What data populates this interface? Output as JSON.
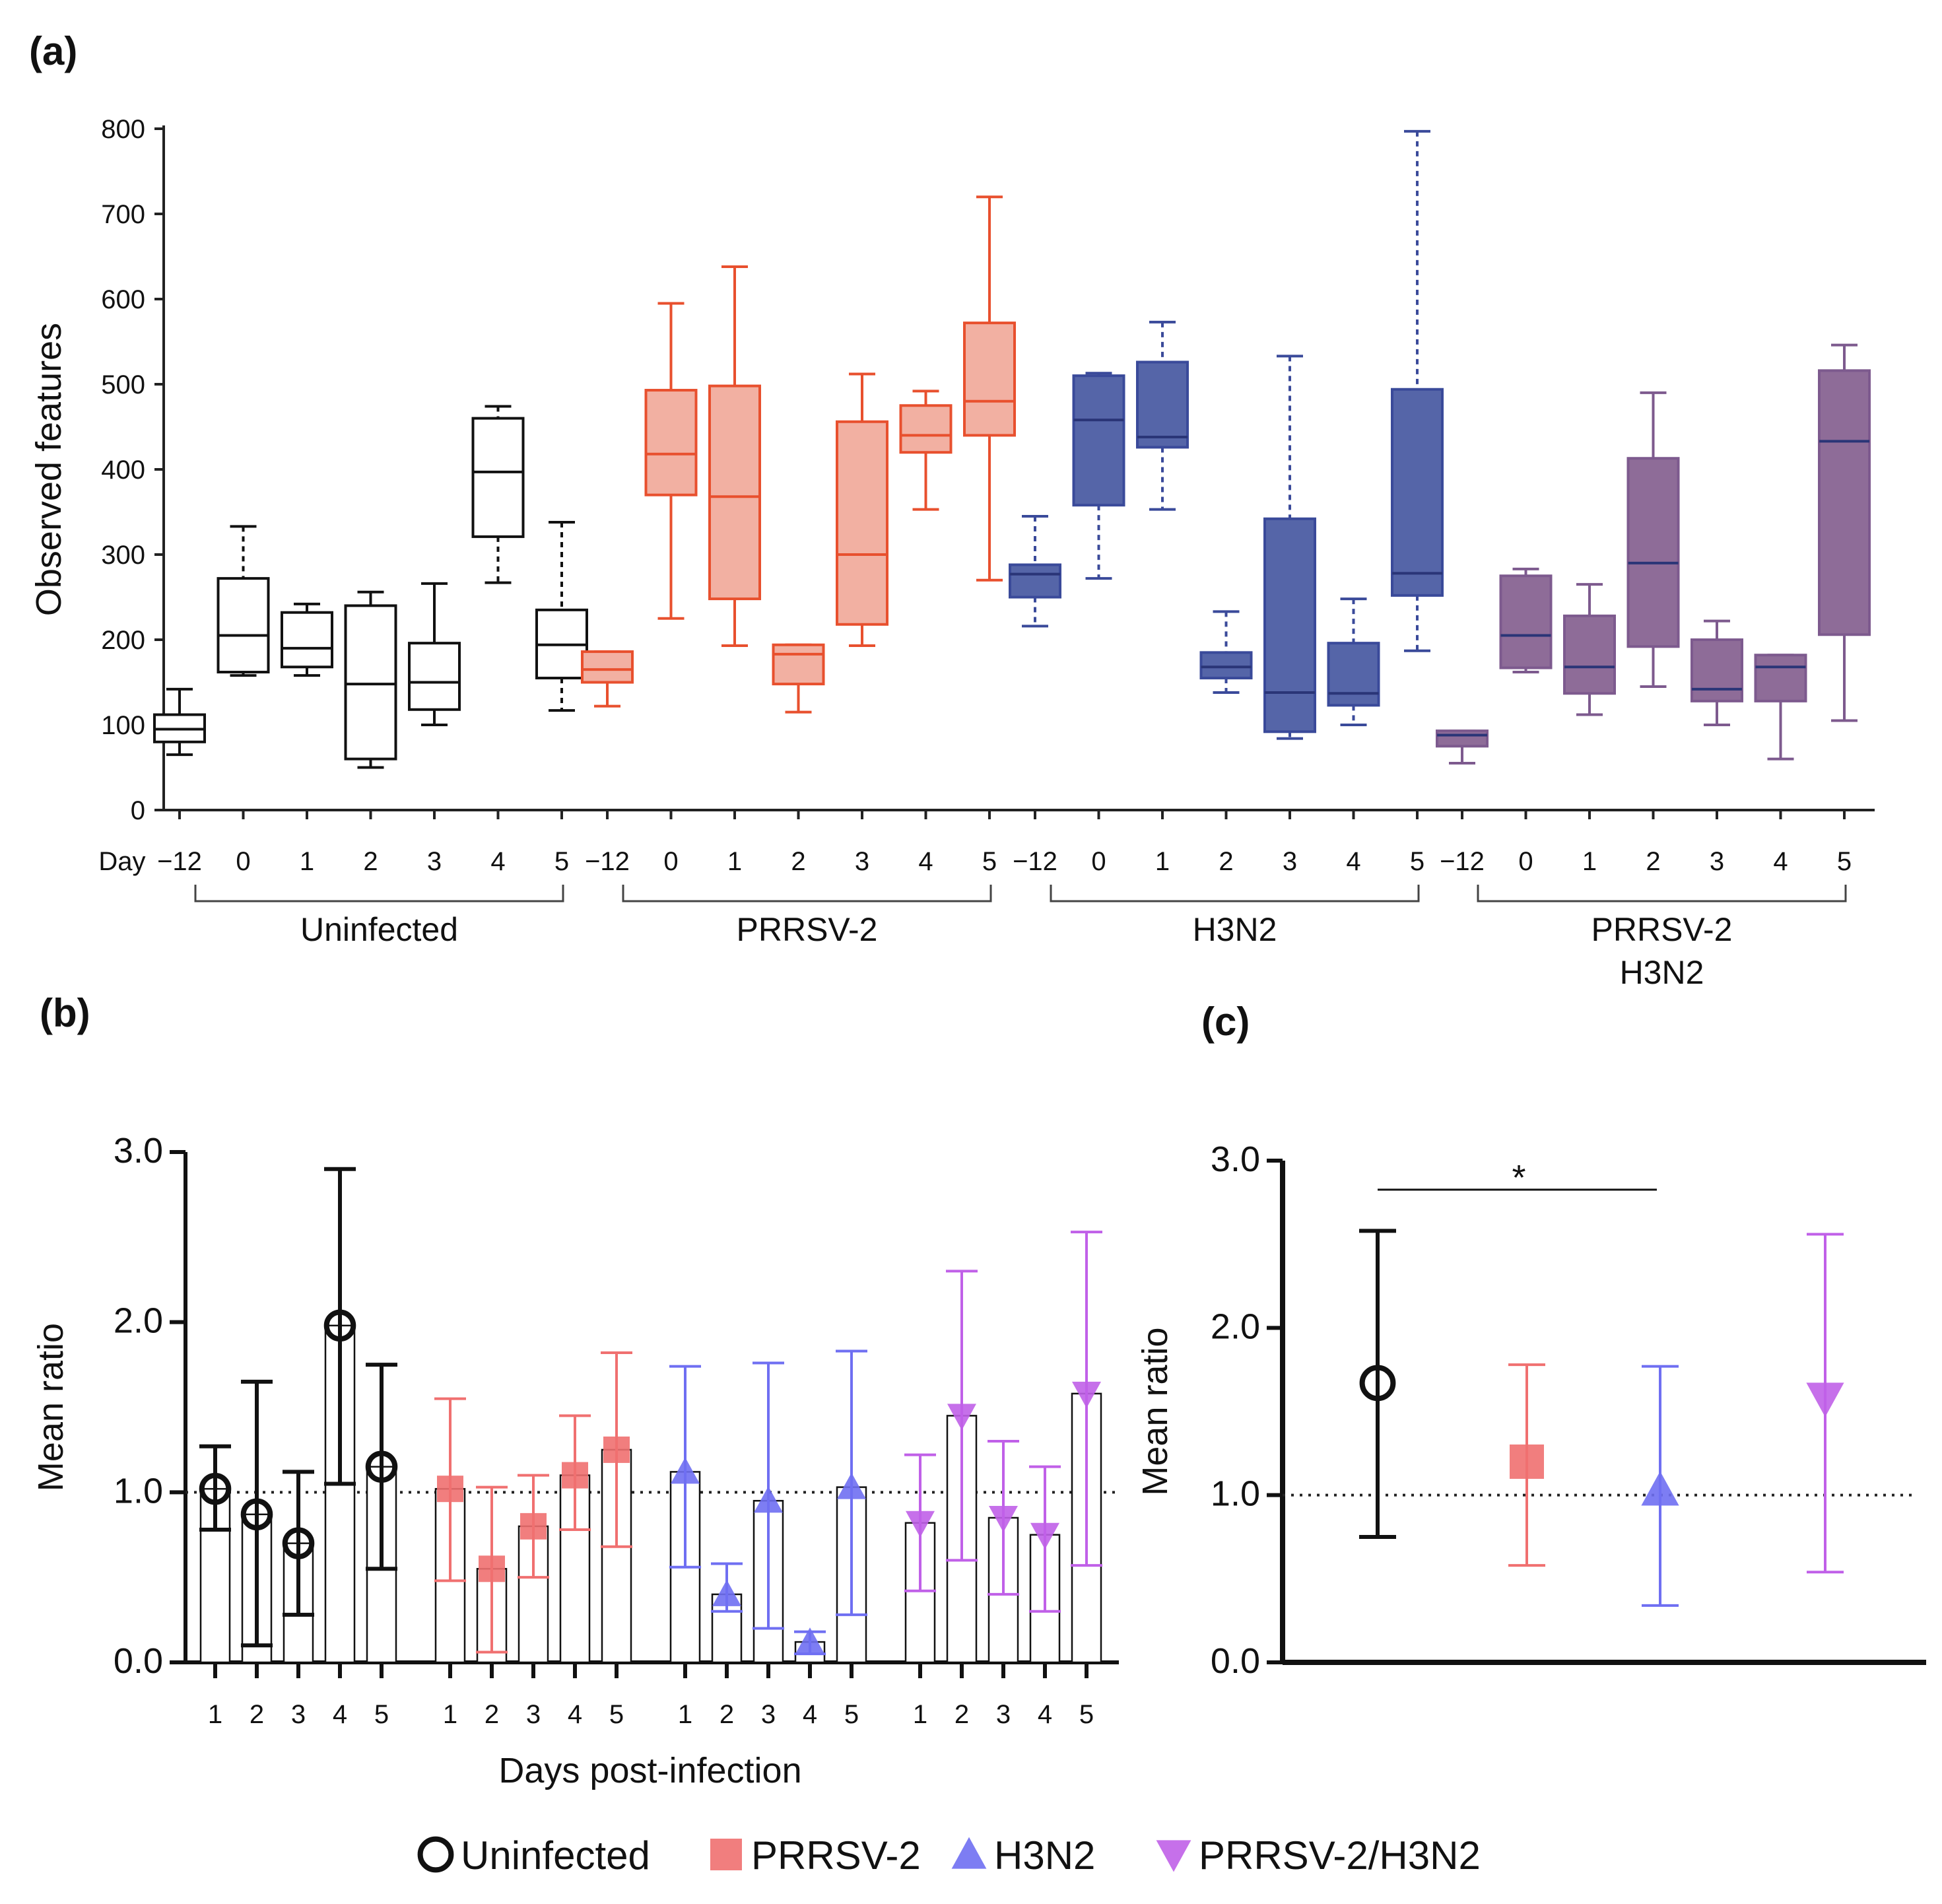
{
  "panels": {
    "a": "(a)",
    "b": "(b)",
    "c": "(c)"
  },
  "colors": {
    "uninfected": "#111111",
    "prrsv_line": "#E8502E",
    "prrsv_fill": "#F2B0A2",
    "h3n2_line": "#3A4A9A",
    "h3n2_fill": "#5565A8",
    "combo_line": "#7D5A8E",
    "combo_fill": "#8E6C98",
    "prrsv_b": "#F07070",
    "h3n2_b": "#6F6FF2",
    "combo_b": "#C060E8"
  },
  "chart_data": [
    {
      "type": "boxplot",
      "id": "a",
      "ylabel": "Observed features",
      "ylim": [
        0,
        800
      ],
      "yticks": [
        "0",
        "100",
        "200",
        "300",
        "400",
        "500",
        "600",
        "700",
        "800"
      ],
      "day_label": "Day",
      "days": [
        "−12",
        "0",
        "1",
        "2",
        "3",
        "4",
        "5"
      ],
      "groups": [
        {
          "name": "Uninfected",
          "name2": "",
          "color": "uninfected",
          "fill": "#ffffff",
          "dashed_days": [
            "0",
            "4",
            "5"
          ],
          "boxes": [
            {
              "day": "−12",
              "min": 65,
              "q1": 80,
              "median": 95,
              "q3": 112,
              "max": 142
            },
            {
              "day": "0",
              "min": 158,
              "q1": 162,
              "median": 205,
              "q3": 272,
              "max": 333
            },
            {
              "day": "1",
              "min": 158,
              "q1": 168,
              "median": 190,
              "q3": 232,
              "max": 242
            },
            {
              "day": "2",
              "min": 50,
              "q1": 60,
              "median": 148,
              "q3": 240,
              "max": 256
            },
            {
              "day": "3",
              "min": 100,
              "q1": 118,
              "median": 150,
              "q3": 196,
              "max": 266
            },
            {
              "day": "4",
              "min": 267,
              "q1": 321,
              "median": 397,
              "q3": 460,
              "max": 474
            },
            {
              "day": "5",
              "min": 117,
              "q1": 155,
              "median": 194,
              "q3": 235,
              "max": 338
            }
          ]
        },
        {
          "name": "PRRSV-2",
          "name2": "",
          "color": "prrsv_line",
          "fill": "prrsv_fill",
          "dashed_days": [],
          "boxes": [
            {
              "day": "−12",
              "min": 122,
              "q1": 150,
              "median": 165,
              "q3": 186,
              "max": 186
            },
            {
              "day": "0",
              "min": 225,
              "q1": 370,
              "median": 418,
              "q3": 493,
              "max": 595
            },
            {
              "day": "1",
              "min": 193,
              "q1": 248,
              "median": 368,
              "q3": 498,
              "max": 638
            },
            {
              "day": "2",
              "min": 115,
              "q1": 148,
              "median": 183,
              "q3": 194,
              "max": 194
            },
            {
              "day": "3",
              "min": 193,
              "q1": 218,
              "median": 300,
              "q3": 456,
              "max": 512
            },
            {
              "day": "4",
              "min": 353,
              "q1": 420,
              "median": 440,
              "q3": 475,
              "max": 492
            },
            {
              "day": "5",
              "min": 270,
              "q1": 440,
              "median": 480,
              "q3": 572,
              "max": 720
            }
          ]
        },
        {
          "name": "H3N2",
          "name2": "",
          "color": "h3n2_line",
          "fill": "h3n2_fill",
          "dashed_days": [
            "−12",
            "0",
            "1",
            "2",
            "3",
            "4",
            "5"
          ],
          "boxes": [
            {
              "day": "−12",
              "min": 216,
              "q1": 250,
              "median": 277,
              "q3": 288,
              "max": 345
            },
            {
              "day": "0",
              "min": 272,
              "q1": 358,
              "median": 458,
              "q3": 510,
              "max": 513
            },
            {
              "day": "1",
              "min": 353,
              "q1": 426,
              "median": 438,
              "q3": 526,
              "max": 573
            },
            {
              "day": "2",
              "min": 138,
              "q1": 155,
              "median": 168,
              "q3": 185,
              "max": 233
            },
            {
              "day": "3",
              "min": 84,
              "q1": 92,
              "median": 138,
              "q3": 342,
              "max": 533
            },
            {
              "day": "4",
              "min": 100,
              "q1": 123,
              "median": 137,
              "q3": 196,
              "max": 248
            },
            {
              "day": "5",
              "min": 187,
              "q1": 252,
              "median": 278,
              "q3": 494,
              "max": 797
            }
          ]
        },
        {
          "name": "PRRSV-2",
          "name2": "H3N2",
          "color": "combo_line",
          "fill": "combo_fill",
          "dashed_days": [],
          "boxes": [
            {
              "day": "−12",
              "min": 55,
              "q1": 75,
              "median": 88,
              "q3": 93,
              "max": 93
            },
            {
              "day": "0",
              "min": 162,
              "q1": 167,
              "median": 205,
              "q3": 275,
              "max": 283
            },
            {
              "day": "1",
              "min": 112,
              "q1": 137,
              "median": 168,
              "q3": 228,
              "max": 265
            },
            {
              "day": "2",
              "min": 145,
              "q1": 192,
              "median": 290,
              "q3": 413,
              "max": 490
            },
            {
              "day": "3",
              "min": 100,
              "q1": 128,
              "median": 142,
              "q3": 200,
              "max": 222
            },
            {
              "day": "4",
              "min": 60,
              "q1": 128,
              "median": 168,
              "q3": 182,
              "max": 182
            },
            {
              "day": "5",
              "min": 105,
              "q1": 206,
              "median": 433,
              "q3": 516,
              "max": 546
            }
          ]
        }
      ]
    },
    {
      "type": "bar_errorbar",
      "id": "b",
      "ylabel": "Mean ratio",
      "xlabel": "Days post-infection",
      "ylim": [
        0,
        3
      ],
      "yticks": [
        "0.0",
        "1.0",
        "2.0",
        "3.0"
      ],
      "reference_line": 1.0,
      "days": [
        "1",
        "2",
        "3",
        "4",
        "5"
      ],
      "series": [
        {
          "name": "Uninfected",
          "marker": "circle",
          "color": "uninfected",
          "values": [
            1.02,
            0.87,
            0.7,
            1.98,
            1.15
          ],
          "lower": [
            0.78,
            0.1,
            0.28,
            1.05,
            0.55
          ],
          "upper": [
            1.27,
            1.65,
            1.12,
            2.9,
            1.75
          ]
        },
        {
          "name": "PRRSV-2",
          "marker": "square",
          "color": "prrsv_b",
          "values": [
            1.02,
            0.55,
            0.8,
            1.1,
            1.25
          ],
          "lower": [
            0.48,
            0.06,
            0.5,
            0.78,
            0.68
          ],
          "upper": [
            1.55,
            1.03,
            1.1,
            1.45,
            1.82
          ]
        },
        {
          "name": "H3N2",
          "marker": "triangle-up",
          "color": "h3n2_b",
          "values": [
            1.12,
            0.4,
            0.95,
            0.12,
            1.03
          ],
          "lower": [
            0.56,
            0.3,
            0.2,
            0.05,
            0.28
          ],
          "upper": [
            1.74,
            0.58,
            1.76,
            0.18,
            1.83
          ]
        },
        {
          "name": "PRRSV-2/H3N2",
          "marker": "triangle-down",
          "color": "combo_b",
          "values": [
            0.82,
            1.45,
            0.85,
            0.75,
            1.58
          ],
          "lower": [
            0.42,
            0.6,
            0.4,
            0.3,
            0.57
          ],
          "upper": [
            1.22,
            2.3,
            1.3,
            1.15,
            2.53
          ]
        }
      ]
    },
    {
      "type": "errorbar",
      "id": "c",
      "ylabel": "Mean ratio",
      "ylim": [
        0,
        3
      ],
      "yticks": [
        "0.0",
        "1.0",
        "2.0",
        "3.0"
      ],
      "reference_line": 1.0,
      "significance": {
        "from": 0,
        "to": 2,
        "label": "*"
      },
      "series": [
        {
          "name": "Uninfected",
          "marker": "circle",
          "color": "uninfected",
          "value": 1.67,
          "lower": 0.75,
          "upper": 2.58
        },
        {
          "name": "PRRSV-2",
          "marker": "square",
          "color": "prrsv_b",
          "value": 1.2,
          "lower": 0.58,
          "upper": 1.78
        },
        {
          "name": "H3N2",
          "marker": "triangle-up",
          "color": "h3n2_b",
          "value": 1.03,
          "lower": 0.34,
          "upper": 1.77
        },
        {
          "name": "PRRSV-2/H3N2",
          "marker": "triangle-down",
          "color": "combo_b",
          "value": 1.58,
          "lower": 0.54,
          "upper": 2.56
        }
      ]
    }
  ],
  "legend": [
    {
      "label": "Uninfected",
      "marker": "circle",
      "color": "uninfected"
    },
    {
      "label": "PRRSV-2",
      "marker": "square",
      "color": "prrsv_b"
    },
    {
      "label": "H3N2",
      "marker": "triangle-up",
      "color": "h3n2_b"
    },
    {
      "label": "PRRSV-2/H3N2",
      "marker": "triangle-down",
      "color": "combo_b"
    }
  ]
}
